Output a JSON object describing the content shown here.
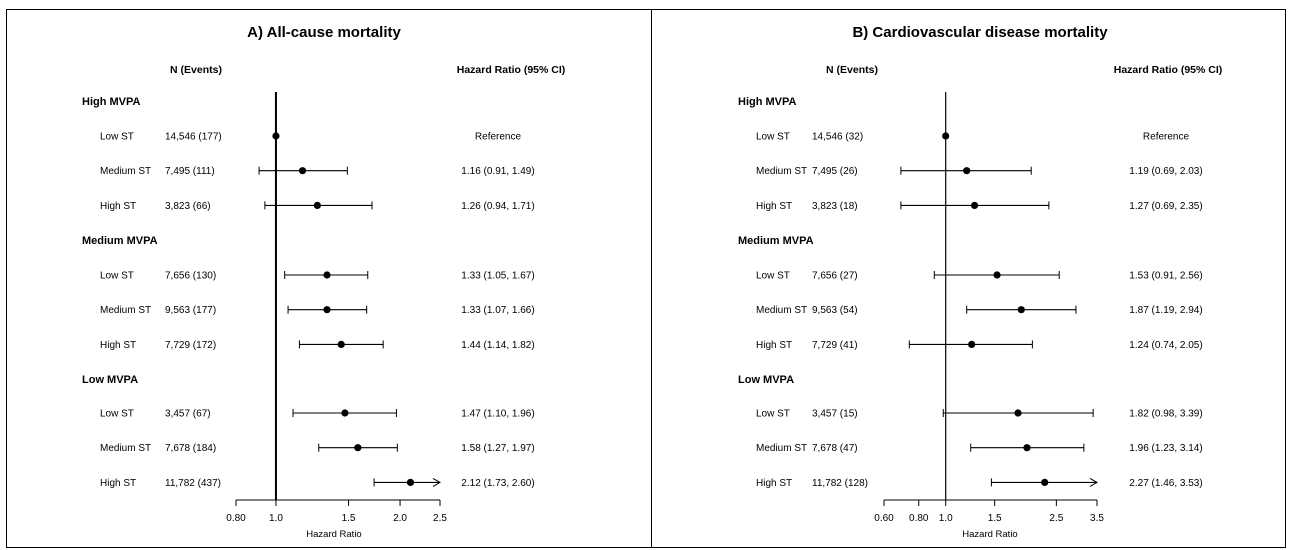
{
  "chart_data": [
    {
      "type": "forest",
      "title": "A) All-cause mortality",
      "col_n_header": "N (Events)",
      "col_hr_header": "Hazard Ratio (95% CI)",
      "xlabel": "Hazard Ratio",
      "x_scale": "log",
      "xlim": [
        0.8,
        2.5
      ],
      "ticks": [
        0.8,
        1.0,
        1.5,
        2.0,
        2.5
      ],
      "tick_labels": [
        "0.80",
        "1.0",
        "1.5",
        "2.0",
        "2.5"
      ],
      "reference_line": 1.0,
      "groups": [
        {
          "label": "High MVPA",
          "rows": [
            {
              "label": "Low ST",
              "n_events": "14,546 (177)",
              "hr_text": "Reference",
              "hr": 1.0,
              "lo": null,
              "hi": null
            },
            {
              "label": "Medium ST",
              "n_events": "7,495 (111)",
              "hr_text": "1.16 (0.91, 1.49)",
              "hr": 1.16,
              "lo": 0.91,
              "hi": 1.49
            },
            {
              "label": "High ST",
              "n_events": "3,823 (66)",
              "hr_text": "1.26 (0.94, 1.71)",
              "hr": 1.26,
              "lo": 0.94,
              "hi": 1.71
            }
          ]
        },
        {
          "label": "Medium MVPA",
          "rows": [
            {
              "label": "Low ST",
              "n_events": "7,656 (130)",
              "hr_text": "1.33 (1.05, 1.67)",
              "hr": 1.33,
              "lo": 1.05,
              "hi": 1.67
            },
            {
              "label": "Medium ST",
              "n_events": "9,563 (177)",
              "hr_text": "1.33 (1.07, 1.66)",
              "hr": 1.33,
              "lo": 1.07,
              "hi": 1.66
            },
            {
              "label": "High ST",
              "n_events": "7,729 (172)",
              "hr_text": "1.44 (1.14, 1.82)",
              "hr": 1.44,
              "lo": 1.14,
              "hi": 1.82
            }
          ]
        },
        {
          "label": "Low MVPA",
          "rows": [
            {
              "label": "Low ST",
              "n_events": "3,457 (67)",
              "hr_text": "1.47 (1.10, 1.96)",
              "hr": 1.47,
              "lo": 1.1,
              "hi": 1.96
            },
            {
              "label": "Medium ST",
              "n_events": "7,678 (184)",
              "hr_text": "1.58 (1.27, 1.97)",
              "hr": 1.58,
              "lo": 1.27,
              "hi": 1.97
            },
            {
              "label": "High ST",
              "n_events": "11,782 (437)",
              "hr_text": "2.12 (1.73, 2.60)",
              "hr": 2.12,
              "lo": 1.73,
              "hi": 2.6
            }
          ]
        }
      ]
    },
    {
      "type": "forest",
      "title": "B) Cardiovascular disease mortality",
      "col_n_header": "N (Events)",
      "col_hr_header": "Hazard Ratio (95% CI)",
      "xlabel": "Hazard Ratio",
      "x_scale": "log",
      "xlim": [
        0.6,
        3.5
      ],
      "ticks": [
        0.6,
        0.8,
        1.0,
        1.5,
        2.5,
        3.5
      ],
      "tick_labels": [
        "0.60",
        "0.80",
        "1.0",
        "1.5",
        "2.5",
        "3.5"
      ],
      "reference_line": 1.0,
      "groups": [
        {
          "label": "High MVPA",
          "rows": [
            {
              "label": "Low ST",
              "n_events": "14,546 (32)",
              "hr_text": "Reference",
              "hr": 1.0,
              "lo": null,
              "hi": null
            },
            {
              "label": "Medium ST",
              "n_events": "7,495 (26)",
              "hr_text": "1.19 (0.69, 2.03)",
              "hr": 1.19,
              "lo": 0.69,
              "hi": 2.03
            },
            {
              "label": "High ST",
              "n_events": "3,823 (18)",
              "hr_text": "1.27 (0.69, 2.35)",
              "hr": 1.27,
              "lo": 0.69,
              "hi": 2.35
            }
          ]
        },
        {
          "label": "Medium MVPA",
          "rows": [
            {
              "label": "Low ST",
              "n_events": "7,656 (27)",
              "hr_text": "1.53 (0.91, 2.56)",
              "hr": 1.53,
              "lo": 0.91,
              "hi": 2.56
            },
            {
              "label": "Medium ST",
              "n_events": "9,563 (54)",
              "hr_text": "1.87 (1.19, 2.94)",
              "hr": 1.87,
              "lo": 1.19,
              "hi": 2.94
            },
            {
              "label": "High ST",
              "n_events": "7,729 (41)",
              "hr_text": "1.24 (0.74, 2.05)",
              "hr": 1.24,
              "lo": 0.74,
              "hi": 2.05
            }
          ]
        },
        {
          "label": "Low MVPA",
          "rows": [
            {
              "label": "Low ST",
              "n_events": "3,457 (15)",
              "hr_text": "1.82 (0.98, 3.39)",
              "hr": 1.82,
              "lo": 0.98,
              "hi": 3.39
            },
            {
              "label": "Medium ST",
              "n_events": "7,678 (47)",
              "hr_text": "1.96 (1.23, 3.14)",
              "hr": 1.96,
              "lo": 1.23,
              "hi": 3.14
            },
            {
              "label": "High ST",
              "n_events": "11,782 (128)",
              "hr_text": "2.27 (1.46, 3.53)",
              "hr": 2.27,
              "lo": 1.46,
              "hi": 3.53
            }
          ]
        }
      ]
    }
  ]
}
